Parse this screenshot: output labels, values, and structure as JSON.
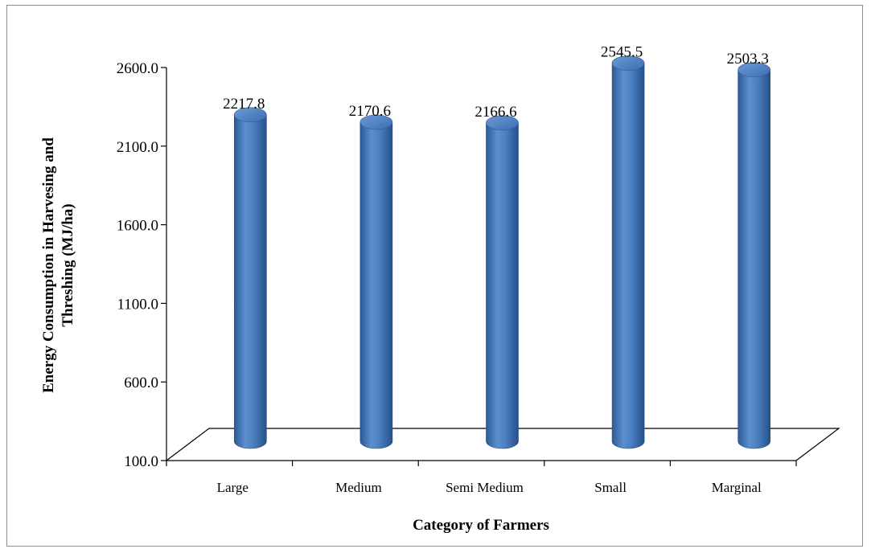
{
  "chart_data": {
    "type": "bar",
    "style": "3d-cylinder",
    "categories": [
      "Large",
      "Medium",
      "Semi Medium",
      "Small",
      "Marginal"
    ],
    "values": [
      2217.8,
      2170.6,
      2166.6,
      2545.5,
      2503.3
    ],
    "value_labels": [
      "2217.8",
      "2170.6",
      "2166.6",
      "2545.5",
      "2503.3"
    ],
    "xlabel": "Category of Farmers",
    "ylabel_lines": [
      "Energy Consumption in Harvesing and",
      "Threshing  (MJ/ha)"
    ],
    "ylim": [
      100,
      2600
    ],
    "yticks": [
      "100.0",
      "600.0",
      "1100.0",
      "1600.0",
      "2100.0",
      "2600.0"
    ],
    "ytick_values": [
      100,
      600,
      1100,
      1600,
      2100,
      2600
    ],
    "legend": "none",
    "grid": false,
    "colors": {
      "bar": "#4a7ebb",
      "bar_dark": "#2a5288",
      "bar_light": "#8fb4e3",
      "floor": "#000000"
    }
  }
}
